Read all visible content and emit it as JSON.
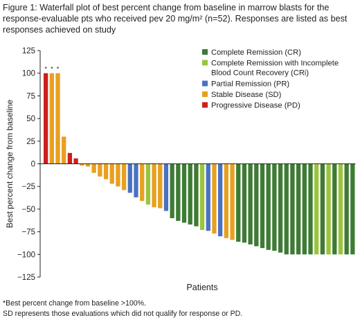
{
  "caption": "Figure 1: Waterfall plot of best percent change from baseline in marrow blasts for the response-evaluable pts who received pev 20 mg/m² (n=52). Responses are listed as best responses achieved on study",
  "chart_data": {
    "type": "bar",
    "ylabel": "Best percent change from baseline",
    "xlabel": "Patients",
    "ylim": [
      -125,
      125
    ],
    "y_ticks": [
      125,
      100,
      75,
      50,
      25,
      0,
      -25,
      -50,
      -75,
      -100,
      -125
    ],
    "legend_position": "top-right",
    "categories": [
      {
        "key": "CR",
        "label": "Complete Remission (CR)",
        "color": "#3e7b34"
      },
      {
        "key": "CRi",
        "label": "Complete Remission with Incomplete Blood Count Recovery (CRi)",
        "color": "#9ac43c"
      },
      {
        "key": "PR",
        "label": "Partial Remission (PR)",
        "color": "#4a72c0"
      },
      {
        "key": "SD",
        "label": "Stable Disease (SD)",
        "color": "#e8a020"
      },
      {
        "key": "PD",
        "label": "Progressive Disease (PD)",
        "color": "#cc1f1f"
      }
    ],
    "annotation_marker": "*",
    "bars": [
      {
        "value": 100,
        "response": "PD",
        "star": true
      },
      {
        "value": 100,
        "response": "SD",
        "star": true
      },
      {
        "value": 100,
        "response": "SD",
        "star": true
      },
      {
        "value": 30,
        "response": "SD"
      },
      {
        "value": 12,
        "response": "PD"
      },
      {
        "value": 6,
        "response": "PD"
      },
      {
        "value": -2,
        "response": "SD"
      },
      {
        "value": -3,
        "response": "SD"
      },
      {
        "value": -10,
        "response": "SD"
      },
      {
        "value": -14,
        "response": "SD"
      },
      {
        "value": -17,
        "response": "SD"
      },
      {
        "value": -22,
        "response": "SD"
      },
      {
        "value": -25,
        "response": "SD"
      },
      {
        "value": -29,
        "response": "SD"
      },
      {
        "value": -32,
        "response": "PR"
      },
      {
        "value": -37,
        "response": "PR"
      },
      {
        "value": -41,
        "response": "SD"
      },
      {
        "value": -45,
        "response": "CRi"
      },
      {
        "value": -48,
        "response": "SD"
      },
      {
        "value": -49,
        "response": "SD"
      },
      {
        "value": -52,
        "response": "PR"
      },
      {
        "value": -60,
        "response": "CR"
      },
      {
        "value": -63,
        "response": "CR"
      },
      {
        "value": -65,
        "response": "CR"
      },
      {
        "value": -67,
        "response": "CR"
      },
      {
        "value": -69,
        "response": "CR"
      },
      {
        "value": -73,
        "response": "CRi"
      },
      {
        "value": -74,
        "response": "PR"
      },
      {
        "value": -77,
        "response": "SD"
      },
      {
        "value": -80,
        "response": "PR"
      },
      {
        "value": -82,
        "response": "SD"
      },
      {
        "value": -84,
        "response": "SD"
      },
      {
        "value": -86,
        "response": "CR"
      },
      {
        "value": -87,
        "response": "CR"
      },
      {
        "value": -89,
        "response": "CR"
      },
      {
        "value": -91,
        "response": "CR"
      },
      {
        "value": -93,
        "response": "CR"
      },
      {
        "value": -95,
        "response": "CR"
      },
      {
        "value": -96,
        "response": "CR"
      },
      {
        "value": -98,
        "response": "CR"
      },
      {
        "value": -100,
        "response": "CR"
      },
      {
        "value": -100,
        "response": "CR"
      },
      {
        "value": -100,
        "response": "CR"
      },
      {
        "value": -100,
        "response": "CR"
      },
      {
        "value": -100,
        "response": "CR"
      },
      {
        "value": -100,
        "response": "CRi"
      },
      {
        "value": -100,
        "response": "CR"
      },
      {
        "value": -100,
        "response": "CRi"
      },
      {
        "value": -100,
        "response": "CR"
      },
      {
        "value": -100,
        "response": "CRi"
      },
      {
        "value": -100,
        "response": "CR"
      },
      {
        "value": -100,
        "response": "CR"
      }
    ]
  },
  "footnotes": [
    "*Best percent change from baseline >100%.",
    "SD represents those evaluations which did not qualify for response or PD."
  ]
}
